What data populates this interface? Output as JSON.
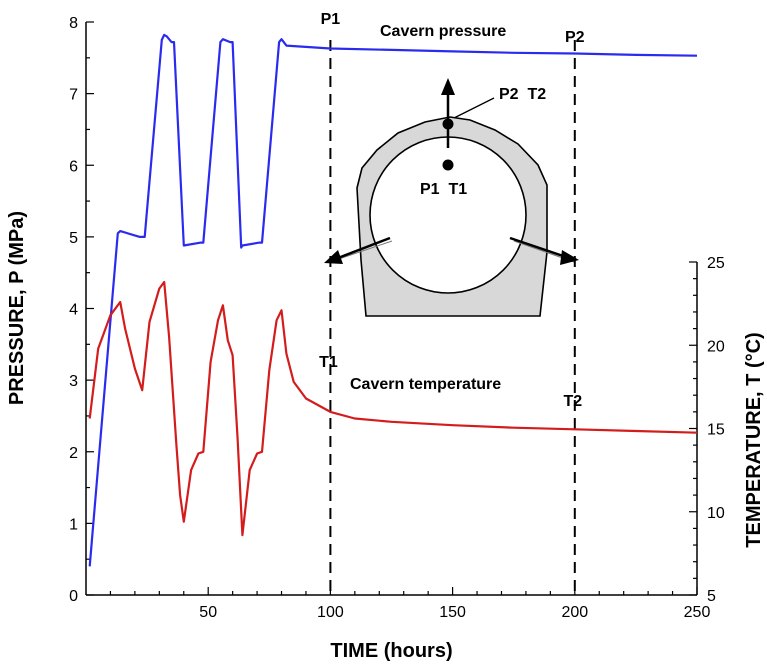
{
  "chart_data": {
    "type": "line",
    "xlabel": "TIME (hours)",
    "ylabel_left": "PRESSURE, P (MPa)",
    "ylabel_right": "TEMPERATURE, T (°C)",
    "xlim": [
      0,
      250
    ],
    "ylim_left": [
      0,
      8
    ],
    "ylim_right": [
      5,
      25
    ],
    "x_ticks": [
      50,
      100,
      150,
      200,
      250
    ],
    "y_left_ticks": [
      0,
      1,
      2,
      3,
      4,
      5,
      6,
      7,
      8
    ],
    "y_right_ticks": [
      5,
      10,
      15,
      20,
      25
    ],
    "grid": false,
    "colors": {
      "pressure": "#2b2bf0",
      "temperature": "#d41c1c"
    },
    "series": [
      {
        "axis": "left",
        "x": [
          1.5,
          13,
          14,
          22,
          24,
          31,
          32,
          33,
          35,
          36,
          40,
          47,
          48,
          55,
          56,
          59,
          60,
          63.5,
          64,
          71,
          72,
          79,
          80,
          82,
          100,
          125,
          150,
          175,
          200,
          225,
          250
        ],
        "values": [
          0.4,
          5.05,
          5.08,
          5.0,
          5.0,
          7.75,
          7.82,
          7.8,
          7.72,
          7.72,
          4.88,
          4.92,
          4.92,
          7.72,
          7.76,
          7.72,
          7.72,
          4.85,
          4.88,
          4.92,
          4.92,
          7.72,
          7.76,
          7.67,
          7.63,
          7.61,
          7.59,
          7.57,
          7.56,
          7.54,
          7.53
        ]
      },
      {
        "axis": "right",
        "x": [
          1.5,
          5,
          10,
          14,
          16,
          20,
          23,
          26,
          30,
          32,
          34,
          37,
          38.5,
          40,
          43,
          46,
          48,
          51,
          54,
          56,
          58,
          60,
          62,
          64,
          67,
          70,
          72,
          75,
          78,
          80,
          82,
          85,
          90,
          100,
          110,
          125,
          150,
          175,
          200,
          225,
          250
        ],
        "values": [
          15.6,
          19.8,
          21.8,
          22.6,
          21.0,
          18.6,
          17.3,
          21.4,
          23.4,
          23.8,
          20.5,
          14.0,
          11.0,
          9.4,
          12.5,
          13.5,
          13.6,
          19.0,
          21.5,
          22.4,
          20.3,
          19.4,
          14.5,
          8.6,
          12.5,
          13.5,
          13.6,
          18.5,
          21.5,
          22.1,
          19.5,
          17.8,
          16.8,
          16.0,
          15.6,
          15.4,
          15.2,
          15.05,
          14.95,
          14.85,
          14.75
        ]
      }
    ],
    "markers": [
      {
        "x": 100,
        "top_label": "P1",
        "bottom_label": "T1"
      },
      {
        "x": 200,
        "top_label": "P2",
        "bottom_label": "T2"
      }
    ],
    "annotations": {
      "pressure": "Cavern pressure",
      "temperature": "Cavern temperature"
    },
    "inset_labels": {
      "point_1": "P1  T1",
      "point_2": "P2  T2"
    }
  }
}
